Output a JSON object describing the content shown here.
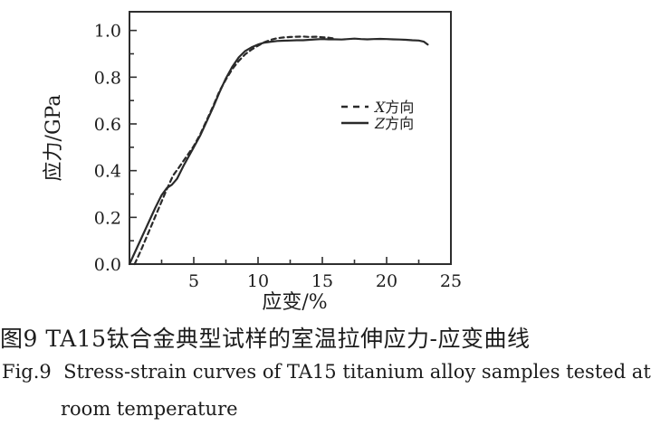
{
  "figure": {
    "captions": {
      "chinese": "图9  TA15钛合金典型试样的室温拉伸应力-应变曲线",
      "english_line1": "Fig.9  Stress-strain curves of TA15 titanium alloy samples tested at",
      "english_line2": "room temperature"
    }
  },
  "colors": {
    "background": "#ffffff",
    "ink": "#1c1c1c",
    "frame": "#2e2e2e",
    "curve": "#2a2a2a"
  },
  "chart_data": {
    "type": "line",
    "title": "",
    "xlabel": "应变/%",
    "ylabel": "应力/GPa",
    "xlim": [
      0,
      25
    ],
    "ylim": [
      0,
      1.08
    ],
    "grid": false,
    "x_major_ticks": [
      5,
      10,
      15,
      20,
      25
    ],
    "x_major_labels": [
      "5",
      "10",
      "15",
      "20",
      "25"
    ],
    "x_minor_ticks": [
      2.5,
      7.5,
      12.5,
      17.5,
      22.5
    ],
    "y_major_ticks": [
      0,
      0.2,
      0.4,
      0.6,
      0.8,
      1.0
    ],
    "y_major_labels": [
      "0.0",
      "0.2",
      "0.4",
      "0.6",
      "0.8",
      "1.0"
    ],
    "y_minor_ticks": [
      0.1,
      0.3,
      0.5,
      0.7,
      0.9
    ],
    "legend": {
      "position": "inside-right",
      "items": [
        {
          "series": "X",
          "marker": "dashed",
          "prefix": "X",
          "suffix": "方向"
        },
        {
          "series": "Z",
          "marker": "solid",
          "prefix": "Z",
          "suffix": "方向"
        }
      ]
    },
    "series": [
      {
        "name": "X方向",
        "direction": "X",
        "style": "dashed",
        "points": [
          [
            0.4,
            0
          ],
          [
            0.9,
            0.06
          ],
          [
            1.4,
            0.125
          ],
          [
            1.9,
            0.19
          ],
          [
            2.4,
            0.255
          ],
          [
            2.9,
            0.32
          ],
          [
            3.4,
            0.38
          ],
          [
            3.8,
            0.41
          ],
          [
            4.3,
            0.45
          ],
          [
            5,
            0.505
          ],
          [
            5.5,
            0.555
          ],
          [
            6,
            0.615
          ],
          [
            6.5,
            0.675
          ],
          [
            7,
            0.74
          ],
          [
            7.5,
            0.79
          ],
          [
            8,
            0.835
          ],
          [
            8.5,
            0.87
          ],
          [
            9,
            0.898
          ],
          [
            9.5,
            0.918
          ],
          [
            10,
            0.935
          ],
          [
            10.5,
            0.95
          ],
          [
            11,
            0.96
          ],
          [
            11.5,
            0.967
          ],
          [
            12,
            0.97
          ],
          [
            12.5,
            0.972
          ],
          [
            13,
            0.973
          ],
          [
            13.5,
            0.974
          ],
          [
            14,
            0.972
          ],
          [
            14.5,
            0.973
          ],
          [
            15,
            0.971
          ],
          [
            15.5,
            0.969
          ],
          [
            15.9,
            0.966
          ]
        ]
      },
      {
        "name": "Z方向",
        "direction": "Z",
        "style": "solid",
        "points": [
          [
            0,
            0
          ],
          [
            0.5,
            0.06
          ],
          [
            1,
            0.12
          ],
          [
            1.5,
            0.18
          ],
          [
            2,
            0.24
          ],
          [
            2.5,
            0.295
          ],
          [
            2.9,
            0.325
          ],
          [
            3.3,
            0.34
          ],
          [
            3.7,
            0.365
          ],
          [
            4.2,
            0.42
          ],
          [
            5,
            0.5
          ],
          [
            5.5,
            0.55
          ],
          [
            6,
            0.61
          ],
          [
            6.5,
            0.67
          ],
          [
            7,
            0.735
          ],
          [
            7.5,
            0.795
          ],
          [
            8,
            0.845
          ],
          [
            8.5,
            0.885
          ],
          [
            9,
            0.912
          ],
          [
            9.5,
            0.928
          ],
          [
            10,
            0.94
          ],
          [
            10.5,
            0.948
          ],
          [
            11,
            0.952
          ],
          [
            11.5,
            0.955
          ],
          [
            12,
            0.956
          ],
          [
            12.5,
            0.957
          ],
          [
            13,
            0.958
          ],
          [
            13.5,
            0.958
          ],
          [
            14,
            0.96
          ],
          [
            14.5,
            0.962
          ],
          [
            15,
            0.963
          ],
          [
            15.5,
            0.962
          ],
          [
            16,
            0.962
          ],
          [
            16.5,
            0.961
          ],
          [
            17,
            0.963
          ],
          [
            17.5,
            0.965
          ],
          [
            18,
            0.963
          ],
          [
            18.5,
            0.962
          ],
          [
            19,
            0.963
          ],
          [
            19.5,
            0.964
          ],
          [
            20,
            0.963
          ],
          [
            20.5,
            0.962
          ],
          [
            21,
            0.961
          ],
          [
            21.5,
            0.96
          ],
          [
            22,
            0.958
          ],
          [
            22.5,
            0.957
          ],
          [
            22.9,
            0.952
          ],
          [
            23.2,
            0.94
          ]
        ]
      }
    ]
  }
}
